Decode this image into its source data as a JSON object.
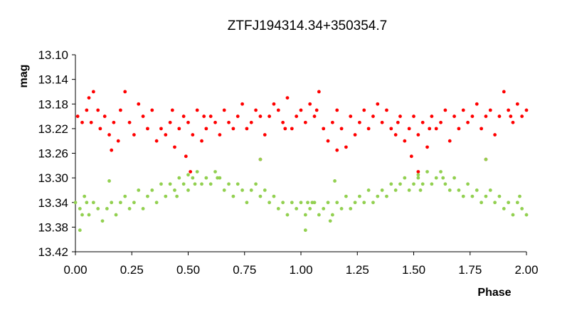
{
  "chart_data": {
    "type": "scatter",
    "title": "ZTFJ194314.34+350354.7",
    "xlabel": "Phase",
    "ylabel": "mag",
    "xlim": [
      0.0,
      2.0
    ],
    "ylim": [
      13.1,
      13.42
    ],
    "y_inverted": true,
    "grid": false,
    "legend": "none",
    "xticks": [
      "0.00",
      "0.25",
      "0.50",
      "0.75",
      "1.00",
      "1.25",
      "1.50",
      "1.75",
      "2.00"
    ],
    "yticks": [
      "13.10",
      "13.14",
      "13.18",
      "13.22",
      "13.26",
      "13.30",
      "13.34",
      "13.38",
      "13.42"
    ],
    "series": [
      {
        "color": "#ff0000",
        "points": [
          [
            0.01,
            13.2
          ],
          [
            0.03,
            13.21
          ],
          [
            0.05,
            13.19
          ],
          [
            0.06,
            13.17
          ],
          [
            0.08,
            13.16
          ],
          [
            0.1,
            13.19
          ],
          [
            0.11,
            13.22
          ],
          [
            0.13,
            13.2
          ],
          [
            0.15,
            13.23
          ],
          [
            0.17,
            13.21
          ],
          [
            0.19,
            13.24
          ],
          [
            0.2,
            13.19
          ],
          [
            0.22,
            13.16
          ],
          [
            0.24,
            13.21
          ],
          [
            0.26,
            13.23
          ],
          [
            0.28,
            13.18
          ],
          [
            0.3,
            13.2
          ],
          [
            0.32,
            13.22
          ],
          [
            0.34,
            13.19
          ],
          [
            0.36,
            13.24
          ],
          [
            0.38,
            13.22
          ],
          [
            0.4,
            13.23
          ],
          [
            0.42,
            13.21
          ],
          [
            0.44,
            13.25
          ],
          [
            0.46,
            13.22
          ],
          [
            0.48,
            13.2
          ],
          [
            0.5,
            13.21
          ],
          [
            0.52,
            13.23
          ],
          [
            0.54,
            13.19
          ],
          [
            0.56,
            13.24
          ],
          [
            0.58,
            13.22
          ],
          [
            0.6,
            13.2
          ],
          [
            0.62,
            13.21
          ],
          [
            0.64,
            13.23
          ],
          [
            0.66,
            13.19
          ],
          [
            0.68,
            13.21
          ],
          [
            0.7,
            13.22
          ],
          [
            0.72,
            13.2
          ],
          [
            0.74,
            13.18
          ],
          [
            0.76,
            13.22
          ],
          [
            0.78,
            13.21
          ],
          [
            0.8,
            13.19
          ],
          [
            0.82,
            13.2
          ],
          [
            0.84,
            13.23
          ],
          [
            0.86,
            13.2
          ],
          [
            0.88,
            13.18
          ],
          [
            0.9,
            13.19
          ],
          [
            0.92,
            13.21
          ],
          [
            0.94,
            13.17
          ],
          [
            0.96,
            13.22
          ],
          [
            0.98,
            13.2
          ],
          [
            1.0,
            13.19
          ],
          [
            1.02,
            13.21
          ],
          [
            1.04,
            13.18
          ],
          [
            1.06,
            13.2
          ],
          [
            1.08,
            13.16
          ],
          [
            1.1,
            13.22
          ],
          [
            1.12,
            13.24
          ],
          [
            1.14,
            13.21
          ],
          [
            1.16,
            13.19
          ],
          [
            1.18,
            13.22
          ],
          [
            1.2,
            13.25
          ],
          [
            1.22,
            13.2
          ],
          [
            1.24,
            13.23
          ],
          [
            1.26,
            13.21
          ],
          [
            1.28,
            13.19
          ],
          [
            1.3,
            13.22
          ],
          [
            1.32,
            13.2
          ],
          [
            1.34,
            13.18
          ],
          [
            1.36,
            13.21
          ],
          [
            1.38,
            13.19
          ],
          [
            1.4,
            13.22
          ],
          [
            1.42,
            13.23
          ],
          [
            1.44,
            13.2
          ],
          [
            1.46,
            13.24
          ],
          [
            1.48,
            13.22
          ],
          [
            1.5,
            13.2
          ],
          [
            1.52,
            13.23
          ],
          [
            1.54,
            13.21
          ],
          [
            1.56,
            13.25
          ],
          [
            1.58,
            13.2
          ],
          [
            1.6,
            13.22
          ],
          [
            1.62,
            13.21
          ],
          [
            1.64,
            13.19
          ],
          [
            1.66,
            13.24
          ],
          [
            1.68,
            13.2
          ],
          [
            1.7,
            13.22
          ],
          [
            1.72,
            13.19
          ],
          [
            1.74,
            13.21
          ],
          [
            1.76,
            13.2
          ],
          [
            1.78,
            13.18
          ],
          [
            1.8,
            13.22
          ],
          [
            1.82,
            13.2
          ],
          [
            1.84,
            13.19
          ],
          [
            1.86,
            13.23
          ],
          [
            1.88,
            13.2
          ],
          [
            1.9,
            13.16
          ],
          [
            1.92,
            13.19
          ],
          [
            1.94,
            13.21
          ],
          [
            1.96,
            13.18
          ],
          [
            1.98,
            13.2
          ],
          [
            2.0,
            13.19
          ],
          [
            0.07,
            13.21
          ],
          [
            0.43,
            13.19
          ],
          [
            0.57,
            13.2
          ],
          [
            0.93,
            13.22
          ],
          [
            1.07,
            13.19
          ],
          [
            1.43,
            13.21
          ],
          [
            1.57,
            13.22
          ],
          [
            1.93,
            13.2
          ],
          [
            0.16,
            13.255
          ],
          [
            0.49,
            13.265
          ],
          [
            0.51,
            13.29
          ],
          [
            0.82,
            13.27
          ],
          [
            1.16,
            13.255
          ],
          [
            1.49,
            13.265
          ],
          [
            1.52,
            13.29
          ],
          [
            1.82,
            13.27
          ]
        ]
      },
      {
        "color": "#92d050",
        "points": [
          [
            0.0,
            13.34
          ],
          [
            0.02,
            13.35
          ],
          [
            0.04,
            13.33
          ],
          [
            0.06,
            13.36
          ],
          [
            0.08,
            13.34
          ],
          [
            0.1,
            13.35
          ],
          [
            0.12,
            13.37
          ],
          [
            0.14,
            13.35
          ],
          [
            0.16,
            13.34
          ],
          [
            0.18,
            13.36
          ],
          [
            0.2,
            13.34
          ],
          [
            0.22,
            13.33
          ],
          [
            0.24,
            13.35
          ],
          [
            0.26,
            13.34
          ],
          [
            0.28,
            13.32
          ],
          [
            0.3,
            13.35
          ],
          [
            0.32,
            13.33
          ],
          [
            0.34,
            13.32
          ],
          [
            0.36,
            13.34
          ],
          [
            0.38,
            13.31
          ],
          [
            0.4,
            13.33
          ],
          [
            0.42,
            13.31
          ],
          [
            0.44,
            13.32
          ],
          [
            0.46,
            13.3
          ],
          [
            0.48,
            13.31
          ],
          [
            0.5,
            13.32
          ],
          [
            0.52,
            13.3
          ],
          [
            0.54,
            13.29
          ],
          [
            0.56,
            13.31
          ],
          [
            0.58,
            13.3
          ],
          [
            0.6,
            13.31
          ],
          [
            0.62,
            13.29
          ],
          [
            0.64,
            13.3
          ],
          [
            0.66,
            13.32
          ],
          [
            0.68,
            13.31
          ],
          [
            0.7,
            13.33
          ],
          [
            0.72,
            13.31
          ],
          [
            0.74,
            13.32
          ],
          [
            0.76,
            13.34
          ],
          [
            0.78,
            13.32
          ],
          [
            0.8,
            13.31
          ],
          [
            0.82,
            13.33
          ],
          [
            0.84,
            13.32
          ],
          [
            0.86,
            13.34
          ],
          [
            0.88,
            13.33
          ],
          [
            0.9,
            13.35
          ],
          [
            0.92,
            13.34
          ],
          [
            0.94,
            13.36
          ],
          [
            0.96,
            13.34
          ],
          [
            0.98,
            13.35
          ],
          [
            1.0,
            13.34
          ],
          [
            1.02,
            13.36
          ],
          [
            1.04,
            13.35
          ],
          [
            1.06,
            13.34
          ],
          [
            1.08,
            13.36
          ],
          [
            1.1,
            13.35
          ],
          [
            1.12,
            13.34
          ],
          [
            1.14,
            13.36
          ],
          [
            1.16,
            13.34
          ],
          [
            1.18,
            13.35
          ],
          [
            1.2,
            13.33
          ],
          [
            1.22,
            13.35
          ],
          [
            1.24,
            13.34
          ],
          [
            1.26,
            13.33
          ],
          [
            1.28,
            13.34
          ],
          [
            1.3,
            13.32
          ],
          [
            1.32,
            13.34
          ],
          [
            1.34,
            13.33
          ],
          [
            1.36,
            13.32
          ],
          [
            1.38,
            13.33
          ],
          [
            1.4,
            13.31
          ],
          [
            1.42,
            13.32
          ],
          [
            1.44,
            13.31
          ],
          [
            1.46,
            13.3
          ],
          [
            1.48,
            13.32
          ],
          [
            1.5,
            13.31
          ],
          [
            1.52,
            13.3
          ],
          [
            1.54,
            13.31
          ],
          [
            1.56,
            13.29
          ],
          [
            1.58,
            13.31
          ],
          [
            1.6,
            13.3
          ],
          [
            1.62,
            13.29
          ],
          [
            1.64,
            13.31
          ],
          [
            1.66,
            13.32
          ],
          [
            1.68,
            13.3
          ],
          [
            1.7,
            13.32
          ],
          [
            1.72,
            13.33
          ],
          [
            1.74,
            13.31
          ],
          [
            1.76,
            13.33
          ],
          [
            1.78,
            13.32
          ],
          [
            1.8,
            13.34
          ],
          [
            1.82,
            13.33
          ],
          [
            1.84,
            13.32
          ],
          [
            1.86,
            13.34
          ],
          [
            1.88,
            13.33
          ],
          [
            1.9,
            13.35
          ],
          [
            1.92,
            13.34
          ],
          [
            1.94,
            13.36
          ],
          [
            1.96,
            13.34
          ],
          [
            1.98,
            13.35
          ],
          [
            2.0,
            13.36
          ],
          [
            0.03,
            13.36
          ],
          [
            0.53,
            13.31
          ],
          [
            0.63,
            13.3
          ],
          [
            1.03,
            13.34
          ],
          [
            1.13,
            13.37
          ],
          [
            1.53,
            13.32
          ],
          [
            1.63,
            13.3
          ],
          [
            1.97,
            13.33
          ],
          [
            0.45,
            13.33
          ],
          [
            0.02,
            13.385
          ],
          [
            0.05,
            13.34
          ],
          [
            0.15,
            13.305
          ],
          [
            0.5,
            13.295
          ],
          [
            0.82,
            13.27
          ],
          [
            1.02,
            13.385
          ],
          [
            1.05,
            13.34
          ],
          [
            1.15,
            13.305
          ],
          [
            1.52,
            13.295
          ],
          [
            1.82,
            13.27
          ]
        ]
      }
    ]
  }
}
